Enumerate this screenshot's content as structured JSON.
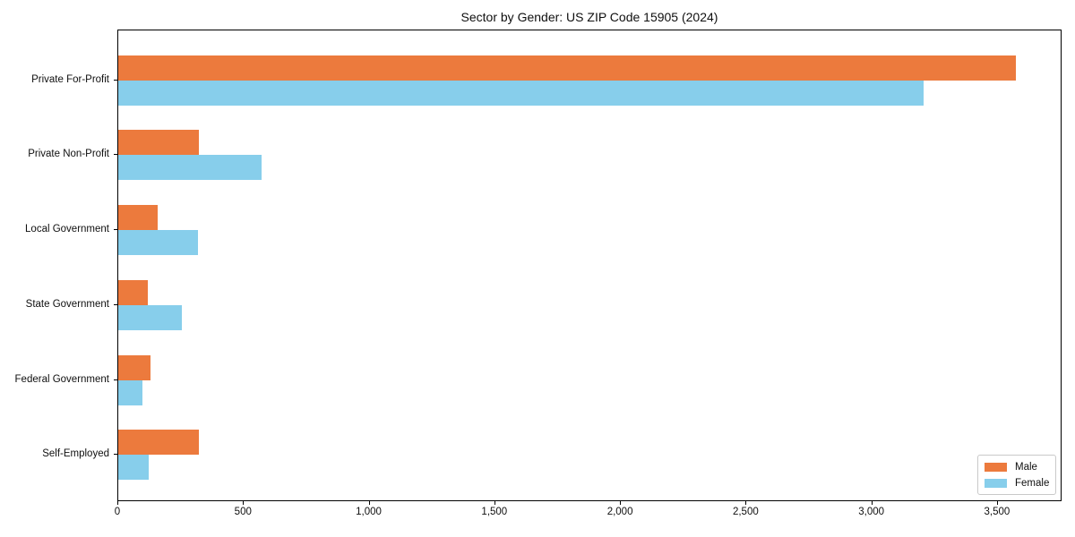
{
  "chart_data": {
    "type": "bar",
    "orientation": "horizontal",
    "title": "Sector by Gender: US ZIP Code 15905 (2024)",
    "categories": [
      "Private For-Profit",
      "Private Non-Profit",
      "Local Government",
      "State Government",
      "Federal Government",
      "Self-Employed"
    ],
    "series": [
      {
        "name": "Male",
        "color": "#EC7A3D",
        "values": [
          3580,
          320,
          157,
          119,
          129,
          320
        ]
      },
      {
        "name": "Female",
        "color": "#87CEEB",
        "values": [
          3212,
          573,
          319,
          253,
          96,
          120
        ]
      }
    ],
    "xlabel": "",
    "ylabel": "",
    "xlim": [
      0,
      3757
    ],
    "xticks": [
      0,
      500,
      1000,
      1500,
      2000,
      2500,
      3000,
      3500
    ],
    "xtick_labels": [
      "0",
      "500",
      "1,000",
      "1,500",
      "2,000",
      "2,500",
      "3,000",
      "3,500"
    ],
    "grid": false,
    "legend": {
      "position": "lower right"
    }
  }
}
